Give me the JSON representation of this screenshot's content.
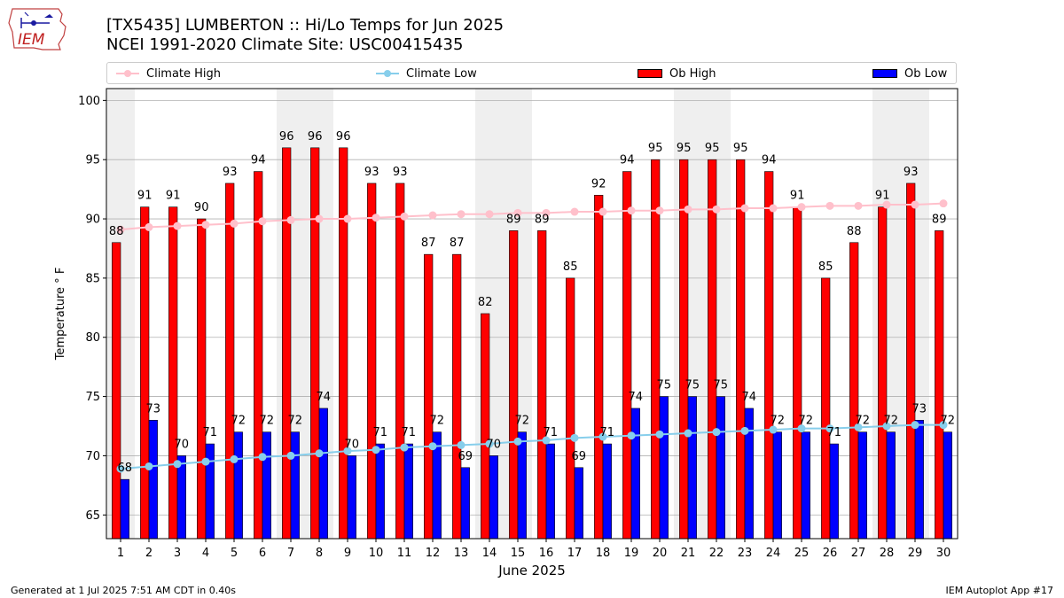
{
  "header": {
    "logo_text": "IEM",
    "title_line1": "[TX5435] LUMBERTON :: Hi/Lo Temps for Jun 2025",
    "title_line2": "NCEI 1991-2020 Climate Site: USC00415435"
  },
  "legend": {
    "climate_high": "Climate High",
    "climate_low": "Climate Low",
    "ob_high": "Ob High",
    "ob_low": "Ob Low"
  },
  "colors": {
    "ob_high": "#ff0000",
    "ob_low": "#0000ff",
    "climate_high": "#ffc0cb",
    "climate_low": "#87ceeb",
    "weekend_shade": "#efefef",
    "grid": "#b0b0b0"
  },
  "footer": {
    "generated": "Generated at 1 Jul 2025 7:51 AM CDT in 0.40s",
    "app": "IEM Autoplot App #17"
  },
  "chart_data": {
    "type": "bar",
    "xlabel": "June 2025",
    "ylabel": "Temperature ° F",
    "ylim": [
      63,
      101
    ],
    "yticks": [
      65,
      70,
      75,
      80,
      85,
      90,
      95,
      100
    ],
    "grid": true,
    "legend_position": "top",
    "categories": [
      "1",
      "2",
      "3",
      "4",
      "5",
      "6",
      "7",
      "8",
      "9",
      "10",
      "11",
      "12",
      "13",
      "14",
      "15",
      "16",
      "17",
      "18",
      "19",
      "20",
      "21",
      "22",
      "23",
      "24",
      "25",
      "26",
      "27",
      "28",
      "29",
      "30"
    ],
    "shaded_days": [
      1,
      7,
      8,
      14,
      15,
      21,
      22,
      28,
      29
    ],
    "series": [
      {
        "name": "Ob High",
        "values": [
          88,
          91,
          91,
          90,
          93,
          94,
          96,
          96,
          96,
          93,
          93,
          87,
          87,
          82,
          89,
          89,
          85,
          92,
          94,
          95,
          95,
          95,
          95,
          94,
          91,
          85,
          88,
          91,
          93,
          89
        ]
      },
      {
        "name": "Ob Low",
        "values": [
          68,
          73,
          70,
          71,
          72,
          72,
          72,
          74,
          70,
          71,
          71,
          72,
          69,
          70,
          72,
          71,
          69,
          71,
          74,
          75,
          75,
          75,
          74,
          72,
          72,
          71,
          72,
          72,
          73,
          72
        ]
      },
      {
        "name": "Climate High",
        "values": [
          89.1,
          89.3,
          89.4,
          89.5,
          89.6,
          89.8,
          89.9,
          90.0,
          90.0,
          90.1,
          90.2,
          90.3,
          90.4,
          90.4,
          90.5,
          90.5,
          90.6,
          90.6,
          90.7,
          90.7,
          90.8,
          90.8,
          90.9,
          90.9,
          91.0,
          91.1,
          91.1,
          91.2,
          91.2,
          91.3
        ]
      },
      {
        "name": "Climate Low",
        "values": [
          68.9,
          69.1,
          69.3,
          69.5,
          69.7,
          69.9,
          70.0,
          70.2,
          70.4,
          70.5,
          70.7,
          70.8,
          70.9,
          71.0,
          71.2,
          71.3,
          71.5,
          71.6,
          71.7,
          71.8,
          71.9,
          72.0,
          72.1,
          72.2,
          72.3,
          72.3,
          72.4,
          72.5,
          72.6,
          72.6
        ]
      }
    ]
  }
}
